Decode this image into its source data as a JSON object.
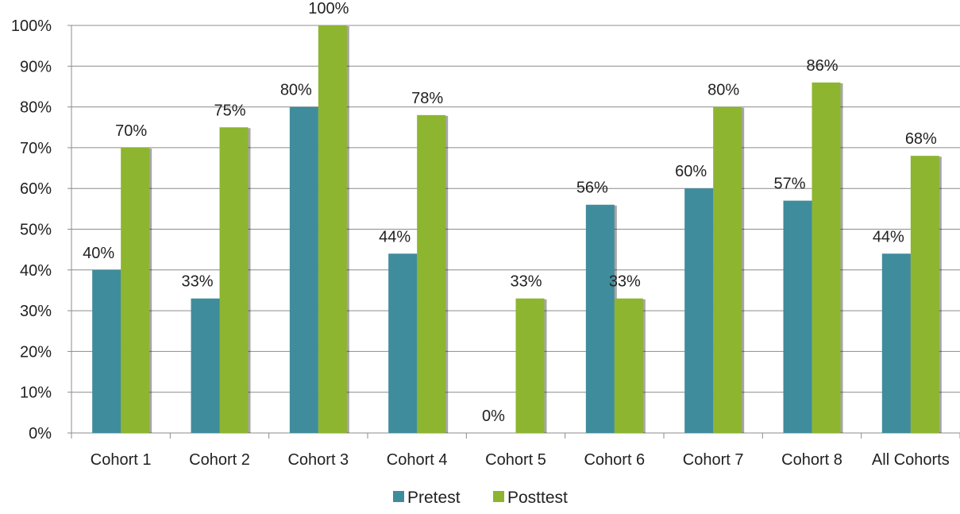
{
  "chart_data": {
    "type": "bar",
    "title": "",
    "xlabel": "",
    "ylabel": "",
    "ylim": [
      0,
      100
    ],
    "y_ticks": [
      "0%",
      "10%",
      "20%",
      "30%",
      "40%",
      "50%",
      "60%",
      "70%",
      "80%",
      "90%",
      "100%"
    ],
    "grid": true,
    "legend_position": "bottom",
    "categories": [
      "Cohort 1",
      "Cohort 2",
      "Cohort 3",
      "Cohort 4",
      "Cohort 5",
      "Cohort 6",
      "Cohort 7",
      "Cohort 8",
      "All Cohorts"
    ],
    "series": [
      {
        "name": "Pretest",
        "color": "#3f8c9c",
        "values": [
          40,
          33,
          80,
          44,
          0,
          56,
          60,
          57,
          44
        ],
        "labels": [
          "40%",
          "33%",
          "80%",
          "44%",
          "0%",
          "56%",
          "60%",
          "57%",
          "44%"
        ]
      },
      {
        "name": "Posttest",
        "color": "#8db530",
        "values": [
          70,
          75,
          100,
          78,
          33,
          33,
          80,
          86,
          68
        ],
        "labels": [
          "70%",
          "75%",
          "100%",
          "78%",
          "33%",
          "33%",
          "80%",
          "86%",
          "68%"
        ]
      }
    ]
  }
}
